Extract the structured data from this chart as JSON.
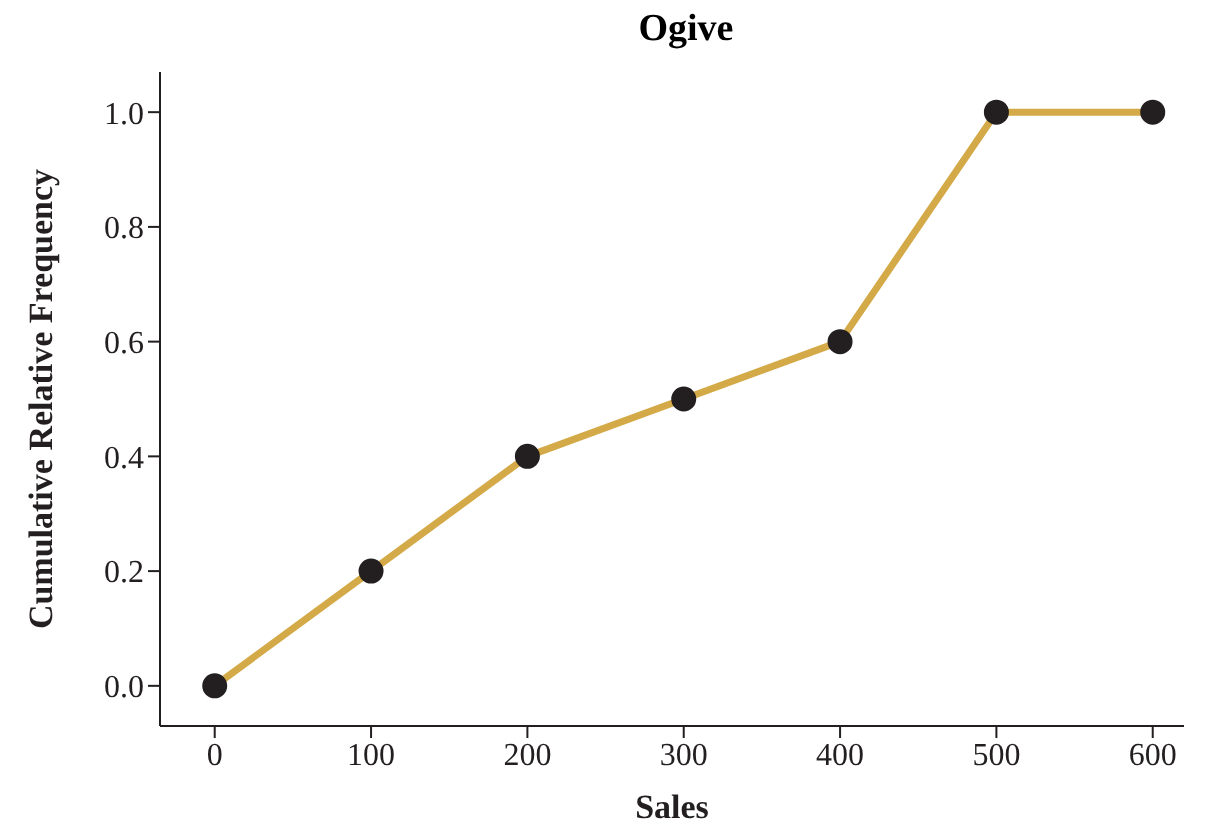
{
  "chart_data": {
    "type": "line",
    "title": "Ogive",
    "xlabel": "Sales",
    "ylabel": "Cumulative Relative Frequency",
    "x": [
      0,
      100,
      200,
      300,
      400,
      500,
      600
    ],
    "series": [
      {
        "color": "#d4aa48",
        "values": [
          0,
          0.2,
          0.4,
          0.5,
          0.6,
          1.0,
          1.0
        ]
      }
    ],
    "xlim": [
      -35,
      620
    ],
    "xticks": [
      0,
      100,
      200,
      300,
      400,
      500,
      600
    ],
    "ylim": [
      -0.07,
      1.07
    ],
    "yticks": [
      {
        "value": 0,
        "label": "0.0"
      },
      {
        "value": 0.2,
        "label": "0.2"
      },
      {
        "value": 0.4,
        "label": "0.4"
      },
      {
        "value": 0.6,
        "label": "0.6"
      },
      {
        "value": 0.8,
        "label": "0.8"
      },
      {
        "value": 1,
        "label": "1.0"
      }
    ],
    "marker": "circle",
    "grid": false,
    "legend": false
  }
}
